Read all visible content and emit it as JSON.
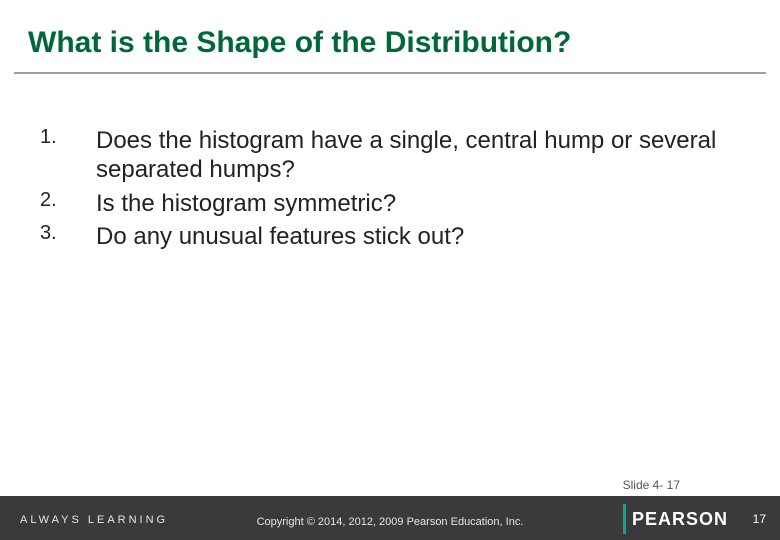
{
  "title": "What is the Shape of the Distribution?",
  "title_color": "#006838",
  "rule_color": "#9e9e9e",
  "list": {
    "items": [
      {
        "num": "1.",
        "text": "Does the histogram have a single, central hump or several separated humps?"
      },
      {
        "num": "2.",
        "text": "Is the histogram symmetric?"
      },
      {
        "num": "3.",
        "text": "Do any unusual features stick out?"
      }
    ],
    "num_fontsize": 20,
    "text_fontsize": 24,
    "text_color": "#222222"
  },
  "slide_ref": "Slide 4- 17",
  "footer": {
    "background": "#3a3a3a",
    "always_learning": "ALWAYS LEARNING",
    "copyright": "Copyright © 2014, 2012, 2009 Pearson Education, Inc.",
    "brand": "PEARSON",
    "brand_bar_color": "#00a99d",
    "page_number": "17"
  }
}
